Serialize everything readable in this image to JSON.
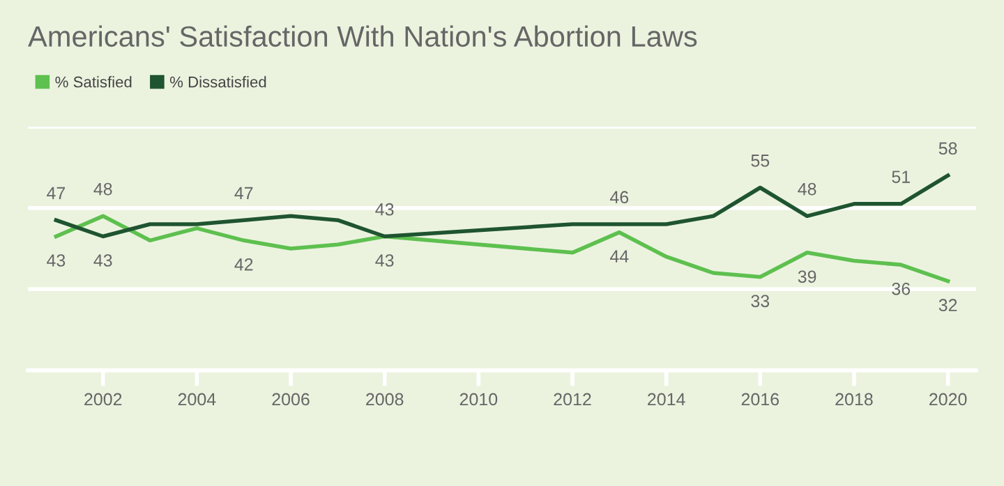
{
  "chart_data": {
    "type": "line",
    "title": "Americans' Satisfaction With Nation's Abortion Laws",
    "xlim": [
      2000.4,
      2020.6
    ],
    "xticks": [
      2002,
      2004,
      2006,
      2008,
      2010,
      2012,
      2014,
      2016,
      2018,
      2020
    ],
    "ylim": [
      10,
      70
    ],
    "yticks": [
      {
        "value": 10,
        "label": null
      },
      {
        "value": 30,
        "label": null
      },
      {
        "value": 50,
        "label": null
      },
      {
        "value": 70,
        "label": null
      }
    ],
    "tick_labels": "x",
    "grid": "y",
    "legend": "top left",
    "marker": "none",
    "line_style": "solid",
    "series": [
      {
        "name": "% Satisfied",
        "color": "#5ec04f",
        "x": [
          2001,
          2002,
          2003,
          2004,
          2005,
          2006,
          2007,
          2008,
          2012,
          2013,
          2014,
          2015,
          2016,
          2017,
          2018,
          2019,
          2020
        ],
        "values": [
          43,
          48,
          42,
          45,
          42,
          40,
          41,
          43,
          39,
          44,
          38,
          34,
          33,
          39,
          37,
          36,
          32
        ],
        "value_labels": [
          "43",
          "48",
          null,
          null,
          "42",
          null,
          null,
          "43",
          null,
          "44",
          null,
          null,
          "33",
          "39",
          null,
          "36",
          "32"
        ]
      },
      {
        "name": "% Dissatisfied",
        "color": "#1f5430",
        "x": [
          2001,
          2002,
          2003,
          2004,
          2005,
          2006,
          2007,
          2008,
          2012,
          2013,
          2014,
          2015,
          2016,
          2017,
          2018,
          2019,
          2020
        ],
        "values": [
          47,
          43,
          46,
          46,
          47,
          48,
          47,
          43,
          46,
          46,
          46,
          48,
          55,
          48,
          51,
          51,
          58
        ],
        "value_labels": [
          "47",
          "43",
          null,
          null,
          "47",
          null,
          null,
          "43",
          null,
          "46",
          null,
          null,
          "55",
          "48",
          null,
          "51",
          "58"
        ]
      }
    ]
  }
}
